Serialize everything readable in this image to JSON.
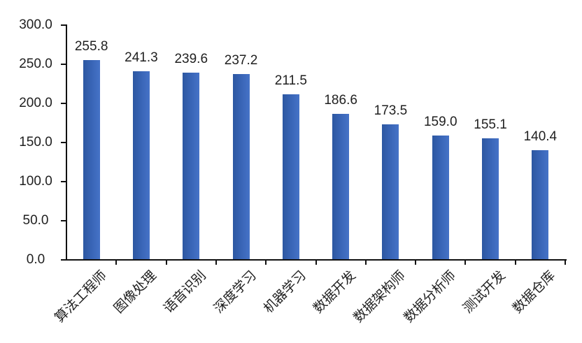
{
  "chart_data": {
    "type": "bar",
    "title": "",
    "xlabel": "",
    "ylabel": "",
    "categories": [
      "算法工程师",
      "图像处理",
      "语音识别",
      "深度学习",
      "机器学习",
      "数据开发",
      "数据架构师",
      "数据分析师",
      "测试开发",
      "数据仓库"
    ],
    "values": [
      255.8,
      241.3,
      239.6,
      237.2,
      211.5,
      186.6,
      173.5,
      159.0,
      155.1,
      140.4
    ],
    "value_labels": [
      "255.8",
      "241.3",
      "239.6",
      "237.2",
      "211.5",
      "186.6",
      "173.5",
      "159.0",
      "155.1",
      "140.4"
    ],
    "ylim": [
      0,
      300
    ],
    "yticks": [
      0,
      50,
      100,
      150,
      200,
      250,
      300
    ],
    "ytick_labels": [
      "0.0",
      "50.0",
      "100.0",
      "150.0",
      "200.0",
      "250.0",
      "300.0"
    ],
    "grid": false,
    "legend": false,
    "data_labels_position": "above-bars",
    "category_label_rotation_deg": 45,
    "colors": {
      "bar_gradient_left": "#2c57a1",
      "bar_gradient_right": "#4673c7",
      "axis": "#111111",
      "text": "#1f1f1f",
      "background": "#ffffff"
    }
  }
}
